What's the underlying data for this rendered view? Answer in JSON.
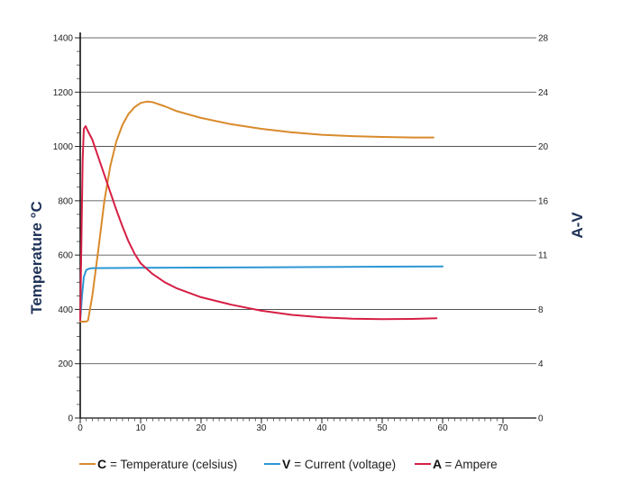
{
  "chart_data": {
    "type": "line",
    "title": "",
    "xlabel": "",
    "ylabel_left": "Temperature °C",
    "ylabel_right": "A-V",
    "xlim": [
      0,
      70
    ],
    "ylim_left": [
      0,
      1400
    ],
    "ylim_right": [
      0,
      28
    ],
    "x_ticks": [
      "0",
      "10",
      "20",
      "30",
      "40",
      "50",
      "60",
      "70"
    ],
    "y_left_ticks": [
      "0",
      "200",
      "400",
      "600",
      "800",
      "1000",
      "1200",
      "1400"
    ],
    "y_right_ticks": [
      "0",
      "4",
      "8",
      "11",
      "16",
      "20",
      "24",
      "28"
    ],
    "grid": "horizontal",
    "legend_position": "bottom",
    "series": [
      {
        "key": "C",
        "name": "Temperature (celsius)",
        "axis": "left",
        "color": "#d98a2b",
        "points": [
          [
            0,
            355
          ],
          [
            1,
            355
          ],
          [
            1.3,
            360
          ],
          [
            2,
            450
          ],
          [
            3,
            620
          ],
          [
            4,
            800
          ],
          [
            5,
            930
          ],
          [
            6,
            1020
          ],
          [
            7,
            1080
          ],
          [
            8,
            1120
          ],
          [
            9,
            1145
          ],
          [
            10,
            1160
          ],
          [
            11,
            1165
          ],
          [
            12,
            1163
          ],
          [
            14,
            1148
          ],
          [
            16,
            1130
          ],
          [
            20,
            1105
          ],
          [
            25,
            1082
          ],
          [
            30,
            1065
          ],
          [
            35,
            1052
          ],
          [
            40,
            1043
          ],
          [
            45,
            1038
          ],
          [
            50,
            1035
          ],
          [
            55,
            1033
          ],
          [
            58.5,
            1033
          ]
        ]
      },
      {
        "key": "V",
        "name": "Current (voltage)",
        "axis": "right",
        "color": "#2d97d3",
        "points": [
          [
            0,
            7.2
          ],
          [
            0.3,
            9
          ],
          [
            0.6,
            10.4
          ],
          [
            1,
            10.9
          ],
          [
            1.5,
            11.0
          ],
          [
            2,
            11.04
          ],
          [
            5,
            11.05
          ],
          [
            10,
            11.06
          ],
          [
            20,
            11.08
          ],
          [
            30,
            11.1
          ],
          [
            40,
            11.12
          ],
          [
            50,
            11.15
          ],
          [
            60,
            11.17
          ]
        ]
      },
      {
        "key": "A",
        "name": "Ampere",
        "axis": "right",
        "color": "#d61f44",
        "points": [
          [
            0,
            7.2
          ],
          [
            0.2,
            13
          ],
          [
            0.4,
            19
          ],
          [
            0.6,
            21.3
          ],
          [
            0.9,
            21.5
          ],
          [
            1.2,
            21.2
          ],
          [
            2,
            20.5
          ],
          [
            3,
            19.2
          ],
          [
            4,
            17.9
          ],
          [
            5,
            16.6
          ],
          [
            6,
            15.3
          ],
          [
            7,
            14.1
          ],
          [
            8,
            13.0
          ],
          [
            9,
            12.1
          ],
          [
            10,
            11.4
          ],
          [
            12,
            10.6
          ],
          [
            14,
            10.0
          ],
          [
            16,
            9.55
          ],
          [
            20,
            8.9
          ],
          [
            25,
            8.35
          ],
          [
            30,
            7.9
          ],
          [
            35,
            7.6
          ],
          [
            40,
            7.42
          ],
          [
            45,
            7.32
          ],
          [
            50,
            7.28
          ],
          [
            55,
            7.3
          ],
          [
            59,
            7.35
          ]
        ]
      }
    ]
  }
}
